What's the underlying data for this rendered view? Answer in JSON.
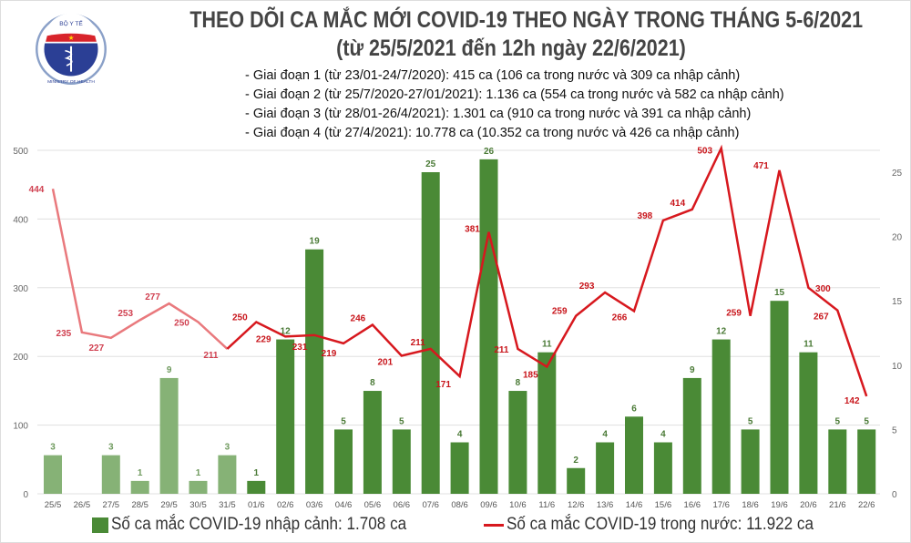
{
  "header": {
    "title_line1": "THEO DÕI CA MẮC MỚI COVID-19 THEO NGÀY TRONG THÁNG 5-6/2021",
    "title_line2": "(từ 25/5/2021 đến 12h ngày 22/6/2021)",
    "periods": [
      "- Giai đoạn 1 (từ 23/01-24/7/2020): 415 ca (106 ca trong nước và 309 ca nhập cảnh)",
      "- Giai đoạn 2 (từ 25/7/2020-27/01/2021): 1.136 ca (554 ca trong nước và 582 ca nhập cảnh)",
      "- Giai đoạn 3 (từ 28/01-26/4/2021): 1.301 ca (910 ca trong nước và 391 ca nhập cảnh)",
      "- Giai đoạn 4 (từ 27/4/2021): 10.778 ca (10.352 ca trong nước và 426 ca nhập cảnh)"
    ]
  },
  "logo": {
    "text_top": "BỘ Y TẾ",
    "text_bottom": "MINISTRY OF HEALTH"
  },
  "chart_data": {
    "type": "bar+line",
    "categories": [
      "25/5",
      "26/5",
      "27/5",
      "28/5",
      "29/5",
      "30/5",
      "31/5",
      "01/6",
      "02/6",
      "03/6",
      "04/6",
      "05/6",
      "06/6",
      "07/6",
      "08/6",
      "09/6",
      "10/6",
      "11/6",
      "12/6",
      "13/6",
      "14/6",
      "15/6",
      "16/6",
      "17/6",
      "18/6",
      "19/6",
      "20/6",
      "21/6",
      "22/6"
    ],
    "series": [
      {
        "name": "Số ca mắc COVID-19 nhập cảnh: 1.708 ca",
        "type": "bar",
        "axis": "right",
        "color": "#4a8a36",
        "faded_color": "#86b276",
        "values": [
          3,
          0,
          3,
          1,
          9,
          1,
          3,
          1,
          12,
          19,
          5,
          8,
          5,
          25,
          4,
          26,
          8,
          11,
          2,
          4,
          6,
          4,
          9,
          12,
          5,
          15,
          11,
          5,
          5
        ]
      },
      {
        "name": "Số ca mắc COVID-19 trong nước: 11.922 ca",
        "type": "line",
        "axis": "left",
        "color": "#d7181e",
        "faded_color": "#e9797d",
        "values": [
          444,
          235,
          227,
          253,
          277,
          250,
          211,
          250,
          229,
          231,
          219,
          246,
          201,
          211,
          171,
          381,
          211,
          185,
          259,
          293,
          266,
          398,
          414,
          503,
          259,
          471,
          300,
          267,
          142
        ]
      }
    ],
    "left_axis": {
      "ticks": [
        0,
        100,
        200,
        300,
        400,
        500
      ],
      "range": [
        0,
        500
      ]
    },
    "right_axis": {
      "ticks": [
        0,
        5,
        10,
        15,
        20,
        25
      ]
    },
    "grid": true,
    "legend": "bottom"
  }
}
